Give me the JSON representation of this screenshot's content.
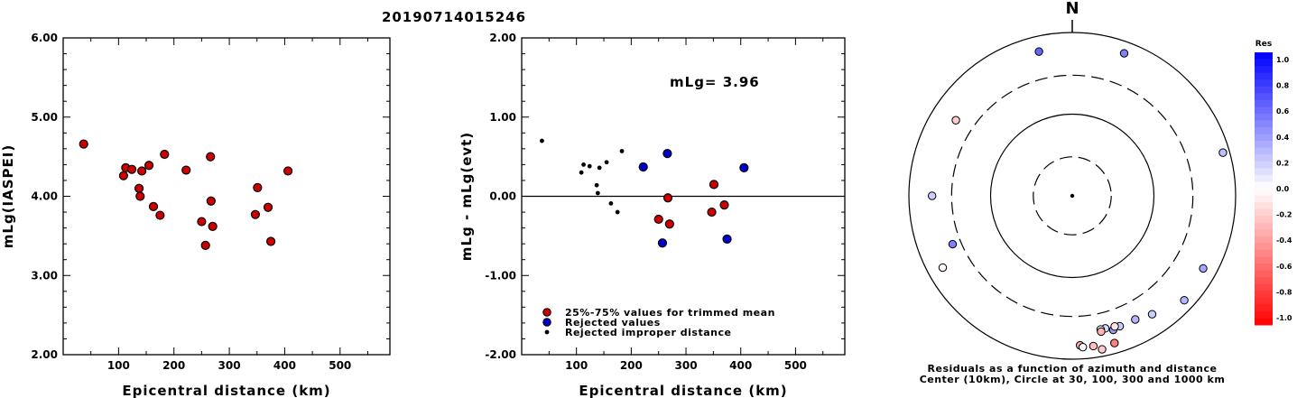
{
  "title": "20190714015246",
  "colors": {
    "trimmed_fill": "#cc0000",
    "rejected_fill": "#0000cc",
    "improper_fill": "#000000",
    "stroke": "#000000"
  },
  "chart_data": [
    {
      "type": "scatter",
      "name": "magnitude-vs-distance",
      "title": "",
      "xlabel": "Epicentral distance (km)",
      "ylabel": "mLg(IASPEI)",
      "xlim": [
        0,
        590
      ],
      "ylim": [
        2.0,
        6.0
      ],
      "xticks": [
        100,
        200,
        300,
        400,
        500
      ],
      "yticks": [
        2.0,
        3.0,
        4.0,
        5.0,
        6.0
      ],
      "ytick_labels": [
        "2.00",
        "3.00",
        "4.00",
        "5.00",
        "6.00"
      ],
      "series": [
        {
          "style": "trimmed",
          "points": [
            [
              37,
              4.66
            ],
            [
              109,
              4.26
            ],
            [
              113,
              4.36
            ],
            [
              124,
              4.34
            ],
            [
              137,
              4.1
            ],
            [
              139,
              4.0
            ],
            [
              142,
              4.32
            ],
            [
              155,
              4.39
            ],
            [
              163,
              3.87
            ],
            [
              175,
              3.76
            ],
            [
              183,
              4.53
            ],
            [
              222,
              4.33
            ],
            [
              250,
              3.68
            ],
            [
              257,
              3.38
            ],
            [
              266,
              4.5
            ],
            [
              267,
              3.94
            ],
            [
              270,
              3.62
            ],
            [
              347,
              3.77
            ],
            [
              351,
              4.11
            ],
            [
              370,
              3.86
            ],
            [
              375,
              3.43
            ],
            [
              406,
              4.32
            ]
          ]
        }
      ]
    },
    {
      "type": "scatter",
      "name": "residual-vs-distance",
      "title": "",
      "xlabel": "Epicentral distance (km)",
      "ylabel": "mLg - mLg(evt)",
      "xlim": [
        0,
        590
      ],
      "ylim": [
        -2.0,
        2.0
      ],
      "xticks": [
        100,
        200,
        300,
        400,
        500
      ],
      "yticks": [
        -2.0,
        -1.0,
        0.0,
        1.0,
        2.0
      ],
      "ytick_labels": [
        "-2.00",
        "-1.00",
        "0.00",
        "1.00",
        "2.00"
      ],
      "annotation": "mLg= 3.96",
      "series": [
        {
          "name": "25%-75% values for trimmed mean",
          "style": "trimmed",
          "points": [
            [
              250,
              -0.29
            ],
            [
              267,
              -0.02
            ],
            [
              270,
              -0.35
            ],
            [
              347,
              -0.2
            ],
            [
              351,
              0.15
            ],
            [
              370,
              -0.11
            ]
          ]
        },
        {
          "name": "Rejected values",
          "style": "rejected",
          "points": [
            [
              222,
              0.37
            ],
            [
              257,
              -0.59
            ],
            [
              266,
              0.54
            ],
            [
              375,
              -0.54
            ],
            [
              406,
              0.36
            ]
          ]
        },
        {
          "name": "Rejected improper distance",
          "style": "improper",
          "points": [
            [
              37,
              0.7
            ],
            [
              109,
              0.3
            ],
            [
              113,
              0.4
            ],
            [
              124,
              0.38
            ],
            [
              137,
              0.14
            ],
            [
              139,
              0.04
            ],
            [
              142,
              0.36
            ],
            [
              155,
              0.43
            ],
            [
              163,
              -0.09
            ],
            [
              175,
              -0.2
            ],
            [
              183,
              0.57
            ]
          ]
        }
      ]
    },
    {
      "type": "scatter",
      "name": "azimuth-distance-residuals",
      "title": "N",
      "caption_line1": "Residuals as a function of azimuth and distance",
      "caption_line2": "Center (10km), Circle at 30, 100, 300 and 1000 km",
      "rings_km": [
        30,
        100,
        300,
        1000
      ],
      "ring_styles": [
        "dashed",
        "solid",
        "dashed",
        "solid"
      ],
      "points_az_dist_res": [
        [
          303,
          500,
          -0.2
        ],
        [
          347,
          650,
          0.6
        ],
        [
          20,
          720,
          0.5
        ],
        [
          74,
          830,
          0.25
        ],
        [
          270,
          520,
          0.2
        ],
        [
          248,
          380,
          0.5
        ],
        [
          241,
          650,
          -0.03
        ],
        [
          133,
          750,
          0.3
        ],
        [
          119,
          680,
          0.35
        ],
        [
          146,
          560,
          0.2
        ],
        [
          153,
          500,
          0.3
        ],
        [
          160,
          500,
          0.2
        ],
        [
          163,
          520,
          0.4
        ],
        [
          166,
          470,
          0.15
        ],
        [
          168,
          470,
          0.05
        ],
        [
          162,
          480,
          -0.1
        ],
        [
          168,
          500,
          -0.3
        ],
        [
          172,
          720,
          -0.25
        ],
        [
          169,
          820,
          -0.2
        ],
        [
          177,
          680,
          -0.35
        ],
        [
          176,
          720,
          0.0
        ],
        [
          164,
          750,
          -0.5
        ]
      ],
      "colorbar": {
        "title": "Res",
        "range": [
          -1.0,
          1.0
        ],
        "labels": [
          "1.0",
          "0.8",
          "0.6",
          "0.4",
          "0.2",
          "0.0",
          "-0.2",
          "-0.4",
          "-0.6",
          "-0.8",
          "-1.0"
        ]
      }
    }
  ]
}
